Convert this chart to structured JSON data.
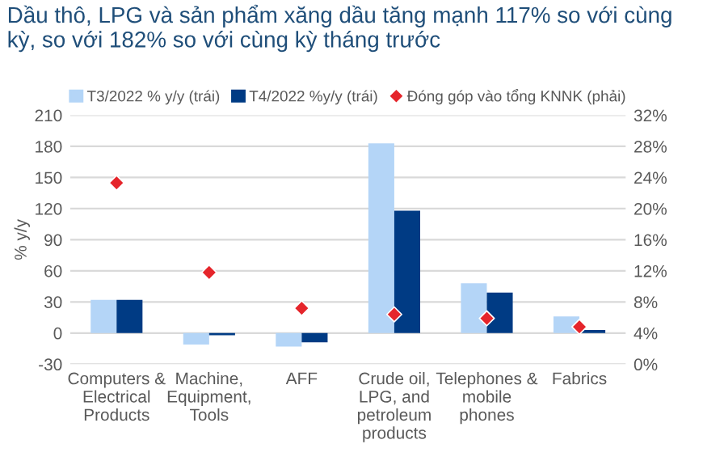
{
  "chart_data": {
    "type": "bar",
    "title": "Dầu thô, LPG và sản phẩm xăng dầu tăng mạnh 117% so với cùng kỳ, so với 182% so với cùng kỳ tháng trước",
    "ylabel": "% y/y",
    "categories": [
      "Computers & Electrical Products",
      "Machine, Equipment, Tools",
      "AFF",
      "Crude oil, LPG, and petroleum products",
      "Telephones & mobile phones",
      "Fabrics"
    ],
    "series": [
      {
        "name": "T3/2022 % y/y (trái)",
        "color": "#b4d5f7",
        "values": [
          32,
          -11,
          -13,
          183,
          48,
          16
        ]
      },
      {
        "name": "T4/2022 %y/y (trái)",
        "color": "#003b84",
        "values": [
          32,
          -2,
          -9,
          118,
          39,
          3
        ]
      },
      {
        "name": "Đóng góp vào tổng KNNK (phải)",
        "type": "scatter",
        "axis": "y2",
        "marker": "diamond",
        "color": "#e5252b",
        "values": [
          23.3,
          11.8,
          7.2,
          6.4,
          5.9,
          4.8
        ]
      }
    ],
    "ylim": [
      -30,
      210
    ],
    "yticks": [
      -30,
      0,
      30,
      60,
      90,
      120,
      150,
      180,
      210
    ],
    "y2lim": [
      0,
      32
    ],
    "y2ticks": [
      {
        "value": 0,
        "label": "0%"
      },
      {
        "value": 4,
        "label": "4%"
      },
      {
        "value": 8,
        "label": "8%"
      },
      {
        "value": 12,
        "label": "12%"
      },
      {
        "value": 16,
        "label": "16%"
      },
      {
        "value": 20,
        "label": "20%"
      },
      {
        "value": 24,
        "label": "24%"
      },
      {
        "value": 28,
        "label": "28%"
      },
      {
        "value": 32,
        "label": "32%"
      }
    ],
    "grid": "y",
    "legend": "top"
  }
}
